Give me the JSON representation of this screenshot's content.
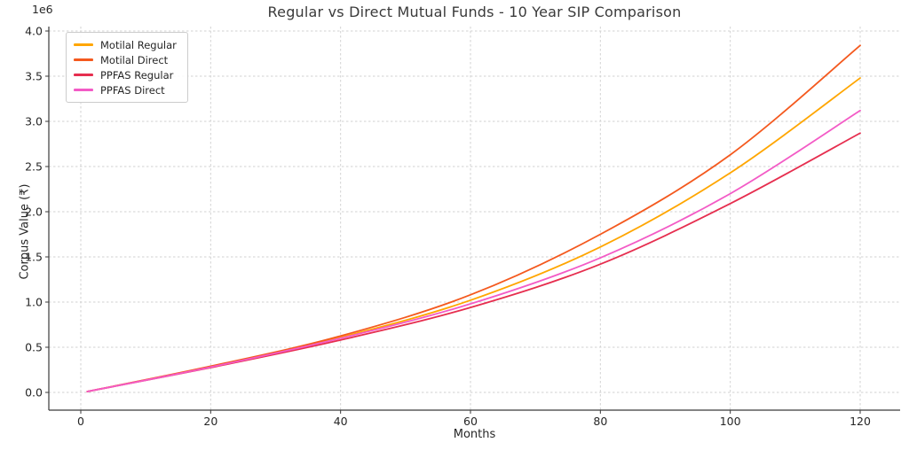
{
  "chart_data": {
    "type": "line",
    "title": "Regular vs Direct Mutual Funds - 10 Year SIP Comparison",
    "xlabel": "Months",
    "ylabel": "Corpus Value (₹)",
    "y_offset_text": "1e6",
    "grid": true,
    "grid_style": "dashed",
    "legend_position": "upper left",
    "xlim": [
      -5,
      126
    ],
    "ylim": [
      -196000,
      4050000
    ],
    "x_axis": {
      "ticks": [
        0,
        20,
        40,
        60,
        80,
        100,
        120
      ],
      "tick_labels": [
        "0",
        "20",
        "40",
        "60",
        "80",
        "100",
        "120"
      ]
    },
    "y_axis": {
      "tick_values": [
        0,
        500000,
        1000000,
        1500000,
        2000000,
        2500000,
        3000000,
        3500000,
        4000000
      ],
      "tick_labels": [
        "0.0",
        "0.5",
        "1.0",
        "1.5",
        "2.0",
        "2.5",
        "3.0",
        "3.5",
        "4.0"
      ]
    },
    "x": [
      1,
      20,
      40,
      60,
      80,
      100,
      120
    ],
    "series": [
      {
        "name": "Motilal Regular",
        "color": "#FFA600",
        "values": [
          10000,
          285000,
          610000,
          1020000,
          1610000,
          2430000,
          3480000
        ]
      },
      {
        "name": "Motilal Direct",
        "color": "#F4591E",
        "values": [
          10000,
          290000,
          625000,
          1080000,
          1750000,
          2630000,
          3840000
        ]
      },
      {
        "name": "PPFAS Regular",
        "color": "#E62E4F",
        "values": [
          10000,
          275000,
          580000,
          940000,
          1420000,
          2090000,
          2870000
        ]
      },
      {
        "name": "PPFAS Direct",
        "color": "#F35BC6",
        "values": [
          10000,
          280000,
          600000,
          980000,
          1490000,
          2200000,
          3120000
        ]
      }
    ],
    "colors": {
      "grid": "#d2d2d2",
      "spine": "#3a3a3a",
      "tick": "#3a3a3a",
      "text": "#262626"
    }
  }
}
